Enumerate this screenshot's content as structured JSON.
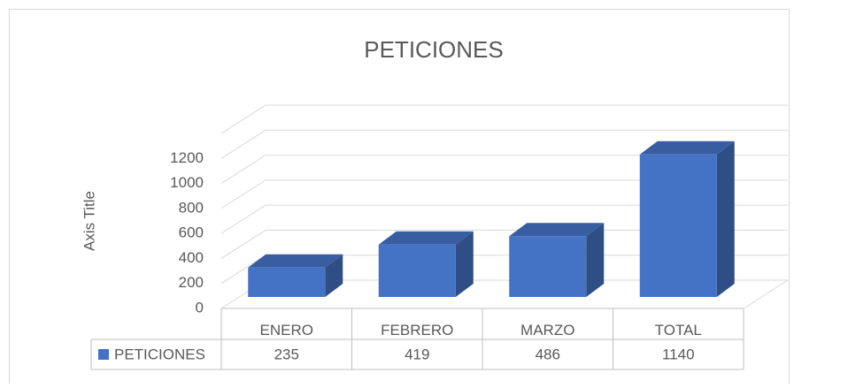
{
  "chart_data": {
    "type": "bar3d",
    "title": "PETICIONES",
    "y_label": "Axis Title",
    "categories": [
      "ENERO",
      "FEBRERO",
      "MARZO",
      "TOTAL"
    ],
    "series": [
      {
        "name": "PETICIONES",
        "color": "#4472c4",
        "values": [
          235,
          419,
          486,
          1140
        ]
      }
    ],
    "ylim": [
      0,
      1400
    ],
    "yticks": [
      0,
      200,
      400,
      600,
      800,
      1000,
      1200
    ],
    "grid": true,
    "data_table": true
  }
}
